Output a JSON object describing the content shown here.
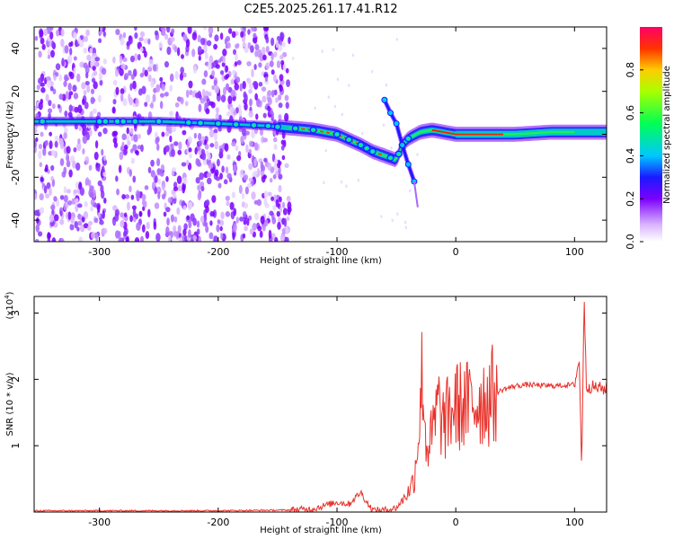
{
  "title": "C2E5.2025.261.17.41.R12",
  "chart_data": [
    {
      "type": "heatmap",
      "xlabel": "Height of straight line (km)",
      "ylabel": "Frequency (Hz)",
      "xlim": [
        -355,
        127
      ],
      "ylim": [
        -50,
        50
      ],
      "xticks": [
        -300,
        -200,
        -100,
        0,
        100
      ],
      "yticks": [
        -40,
        -20,
        0,
        20,
        40
      ],
      "colorbar": {
        "label": "Normalized spectral amplitude",
        "range": [
          0,
          1
        ],
        "ticks": [
          0.0,
          0.2,
          0.4,
          0.6,
          0.8
        ]
      },
      "ridge": {
        "x": [
          -350,
          -300,
          -250,
          -200,
          -160,
          -140,
          -120,
          -100,
          -80,
          -70,
          -60,
          -50,
          -45,
          -40,
          -30,
          -20,
          0,
          20,
          50,
          80,
          100,
          127
        ],
        "y": [
          6,
          6,
          6,
          5,
          4,
          3,
          2,
          0,
          -5,
          -8,
          -10,
          -12,
          -5,
          -2,
          1,
          2,
          0,
          0,
          0,
          1,
          1,
          1
        ]
      },
      "branch": {
        "x": [
          -60,
          -55,
          -50,
          -45,
          -40,
          -35
        ],
        "y": [
          16,
          10,
          5,
          -5,
          -14,
          -22
        ]
      },
      "grid": false
    },
    {
      "type": "line",
      "xlabel": "Height of straight line (km)",
      "ylabel": "SNR (10 * v/v)",
      "y_multiplier": "(x10",
      "y_multiplier_exp": "4",
      "xlim": [
        -355,
        127
      ],
      "ylim": [
        0,
        3.25
      ],
      "xticks": [
        -300,
        -200,
        -100,
        0,
        100
      ],
      "yticks": [
        1,
        2,
        3
      ],
      "color": "#e8312a",
      "series": [
        {
          "x": [
            -355,
            -200,
            -140,
            -120,
            -110,
            -100,
            -90,
            -80,
            -75,
            -70,
            -60,
            -50,
            -40,
            -35,
            -30,
            -28,
            -25,
            -20,
            -15,
            -10,
            -5,
            0,
            10,
            20,
            30,
            40,
            50,
            60,
            80,
            100,
            104,
            106,
            108,
            110,
            127
          ],
          "y": [
            0.02,
            0.02,
            0.03,
            0.05,
            0.1,
            0.15,
            0.12,
            0.3,
            0.15,
            0.03,
            0.03,
            0.06,
            0.3,
            0.5,
            1.5,
            2.2,
            1.0,
            1.1,
            1.6,
            1.3,
            1.5,
            1.6,
            1.6,
            1.7,
            1.75,
            1.85,
            1.9,
            1.92,
            1.9,
            1.92,
            2.3,
            0.6,
            3.3,
            1.9,
            1.85
          ]
        }
      ]
    }
  ]
}
